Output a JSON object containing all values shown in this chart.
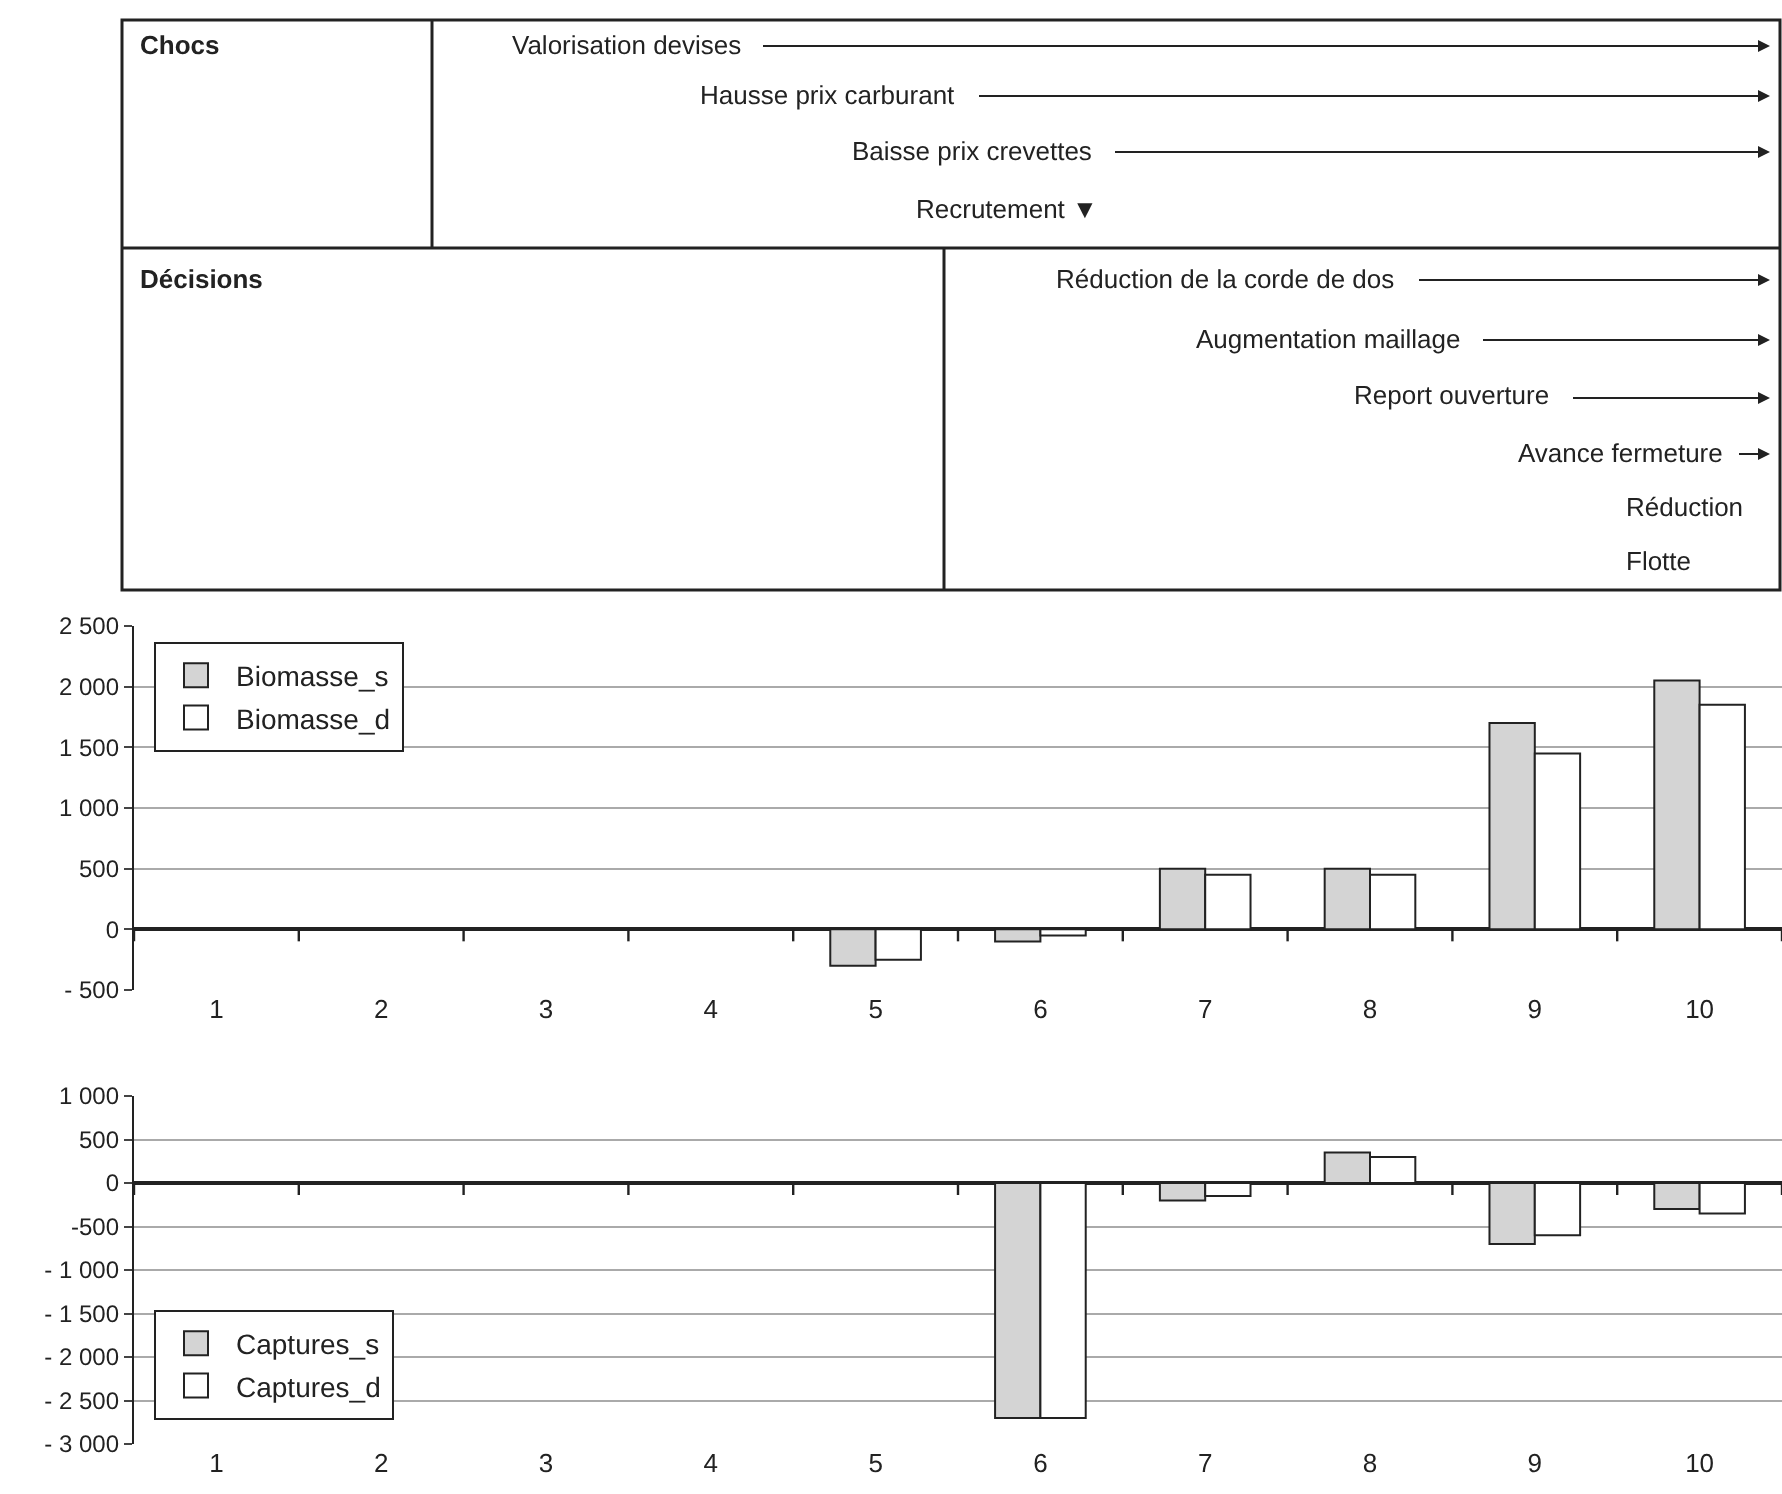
{
  "chart_data": [
    {
      "type": "other",
      "annotations": [
        "Chocs",
        "Valorisation devises",
        "Hausse prix carburant",
        "Baisse prix crevettes",
        "Recrutement ▼",
        "Décisions",
        "Réduction de la corde de dos",
        "Augmentation maillage",
        "Report ouverture",
        "Avance fermeture",
        "Réduction",
        "Flotte"
      ]
    },
    {
      "type": "bar",
      "categories": [
        "1",
        "2",
        "3",
        "4",
        "5",
        "6",
        "7",
        "8",
        "9",
        "10"
      ],
      "series": [
        {
          "name": "Biomasse_s",
          "color": "#d4d4d4",
          "values": [
            null,
            null,
            null,
            null,
            -300,
            -100,
            500,
            500,
            1700,
            2050
          ]
        },
        {
          "name": "Biomasse_d",
          "color": "#ffffff",
          "values": [
            null,
            null,
            null,
            null,
            -250,
            -50,
            450,
            450,
            1450,
            1850
          ]
        }
      ],
      "ylim": [
        -500,
        2500
      ],
      "yticks": [
        {
          "value": -500,
          "label": "- 500"
        },
        0,
        500,
        {
          "value": 1000,
          "label": "1 000"
        },
        {
          "value": 1500,
          "label": "1 500"
        },
        {
          "value": 2000,
          "label": "2 000"
        },
        {
          "value": 2500,
          "label": "2 500"
        }
      ],
      "grid": "y",
      "legend": "top left"
    },
    {
      "type": "bar",
      "categories": [
        "1",
        "2",
        "3",
        "4",
        "5",
        "6",
        "7",
        "8",
        "9",
        "10"
      ],
      "series": [
        {
          "name": "Captures_s",
          "color": "#d4d4d4",
          "values": [
            null,
            null,
            null,
            null,
            null,
            -2700,
            -200,
            350,
            -700,
            -300
          ]
        },
        {
          "name": "Captures_d",
          "color": "#ffffff",
          "values": [
            null,
            null,
            null,
            null,
            null,
            -2700,
            -150,
            300,
            -600,
            -350
          ]
        }
      ],
      "ylim": [
        -3000,
        1000
      ],
      "yticks": [
        {
          "value": -3000,
          "label": "- 3 000"
        },
        {
          "value": -2500,
          "label": "- 2 500"
        },
        {
          "value": -2000,
          "label": "- 2 000"
        },
        {
          "value": -1500,
          "label": "- 1 500"
        },
        {
          "value": -1000,
          "label": "- 1 000"
        },
        {
          "value": -500,
          "label": "-500"
        },
        0,
        500,
        {
          "value": 1000,
          "label": "1 000"
        }
      ],
      "grid": "y",
      "legend": "bottom left"
    }
  ]
}
